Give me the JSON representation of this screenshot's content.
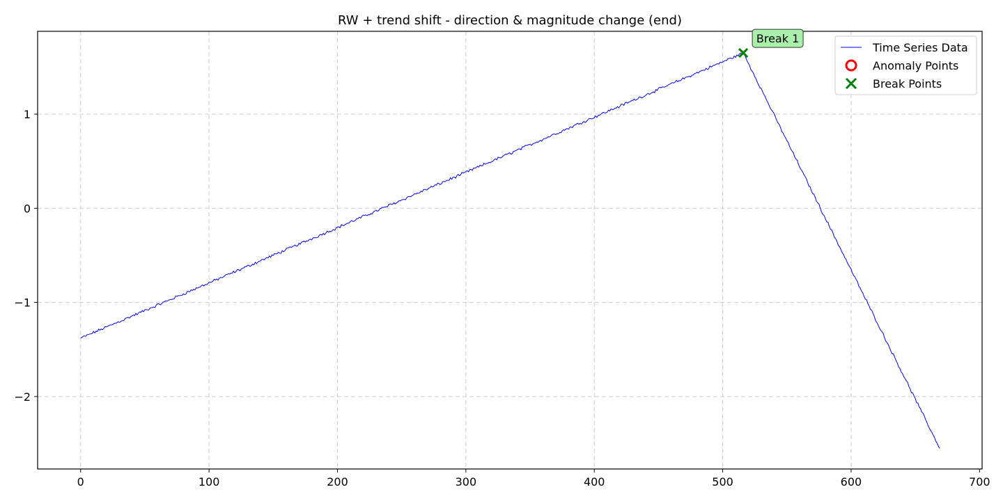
{
  "chart_data": {
    "type": "line",
    "title": "RW + trend shift - direction & magnitude change (end)",
    "xlabel": "",
    "ylabel": "",
    "xlim": [
      -33.5,
      702
    ],
    "ylim": [
      -2.77,
      1.88
    ],
    "xticks": [
      0,
      100,
      200,
      300,
      400,
      500,
      600,
      700
    ],
    "yticks": [
      -2,
      -1,
      0,
      1
    ],
    "ytick_labels": [
      "−2",
      "−1",
      "0",
      "1"
    ],
    "grid": true,
    "legend_position": "upper right",
    "series": [
      {
        "name": "Time Series Data",
        "color": "#0000ff",
        "style": "line",
        "segments": [
          {
            "x_start": 0,
            "x_end": 516,
            "y_start": -1.38,
            "y_end": 1.65,
            "noise": 0.012
          },
          {
            "x_start": 516,
            "x_end": 669,
            "y_start": 1.65,
            "y_end": -2.55,
            "noise": 0.012
          }
        ]
      },
      {
        "name": "Anomaly Points",
        "color": "#ff0000",
        "marker": "open-circle",
        "points": []
      },
      {
        "name": "Break Points",
        "color": "#008000",
        "marker": "x",
        "points": [
          {
            "x": 516,
            "y": 1.65
          }
        ]
      }
    ],
    "annotations": [
      {
        "text": "Break 1",
        "x": 516,
        "y": 1.65,
        "box_color": "#aaf0aa",
        "edge_color": "#333333"
      }
    ]
  }
}
